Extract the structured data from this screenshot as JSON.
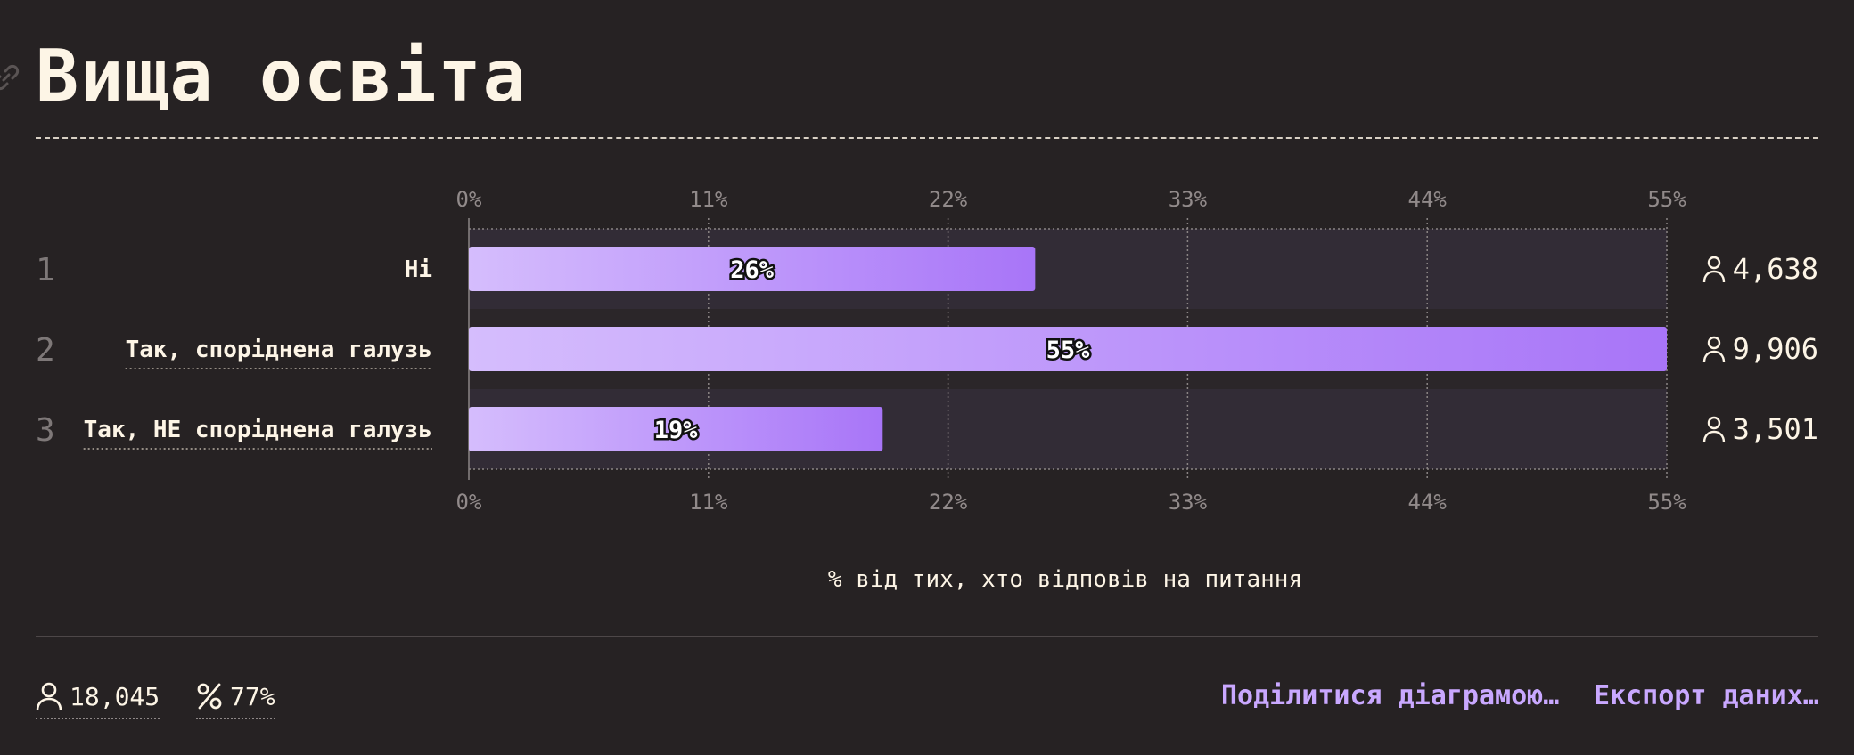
{
  "header": {
    "title": "Вища освіта"
  },
  "chart_data": {
    "type": "bar",
    "orientation": "horizontal",
    "categories": [
      "Ні",
      "Так, споріднена галузь",
      "Так, НЕ споріднена галузь"
    ],
    "ranks": [
      "1",
      "2",
      "3"
    ],
    "values": [
      26,
      55,
      19
    ],
    "value_labels": [
      "26%",
      "55%",
      "19%"
    ],
    "counts": [
      "4,638",
      "9,906",
      "3,501"
    ],
    "xlim": [
      0,
      55
    ],
    "xticks": [
      0,
      11,
      22,
      33,
      44,
      55
    ],
    "xtick_labels": [
      "0%",
      "11%",
      "22%",
      "33%",
      "44%",
      "55%"
    ],
    "xlabel": "% від тих, хто відповів на питання",
    "colors": {
      "bar_start": "#d5bdfd",
      "bar_end": "#a875f8"
    }
  },
  "footer": {
    "respondents": "18,045",
    "percent": "77%",
    "share_label": "Поділитися діаграмою…",
    "export_label": "Експорт даних…"
  }
}
